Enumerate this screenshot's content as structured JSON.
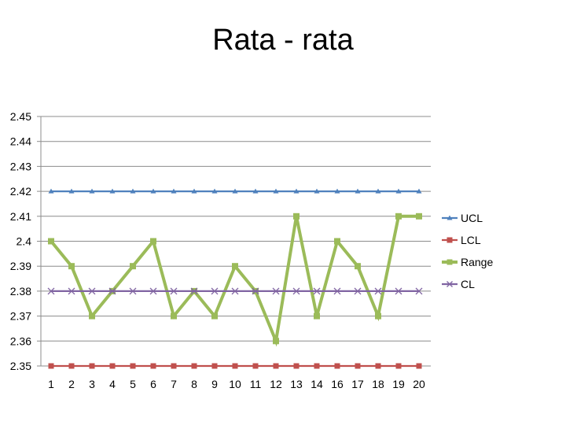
{
  "chart_data": {
    "type": "line",
    "title": "Rata - rata",
    "xlabel": "",
    "ylabel": "",
    "categories": [
      "1",
      "2",
      "3",
      "4",
      "5",
      "6",
      "7",
      "8",
      "9",
      "10",
      "11",
      "12",
      "13",
      "14",
      "16",
      "17",
      "18",
      "19",
      "20"
    ],
    "ylim": [
      2.35,
      2.45
    ],
    "yticks": [
      "2.35",
      "2.36",
      "2.37",
      "2.38",
      "2.39",
      "2.4",
      "2.41",
      "2.42",
      "2.43",
      "2.44",
      "2.45"
    ],
    "grid": true,
    "legend_position": "right",
    "series": [
      {
        "name": "UCL",
        "color": "#4f81bd",
        "marker": "triangle",
        "values": [
          2.42,
          2.42,
          2.42,
          2.42,
          2.42,
          2.42,
          2.42,
          2.42,
          2.42,
          2.42,
          2.42,
          2.42,
          2.42,
          2.42,
          2.42,
          2.42,
          2.42,
          2.42,
          2.42
        ]
      },
      {
        "name": "LCL",
        "color": "#c0504d",
        "marker": "square",
        "values": [
          2.35,
          2.35,
          2.35,
          2.35,
          2.35,
          2.35,
          2.35,
          2.35,
          2.35,
          2.35,
          2.35,
          2.35,
          2.35,
          2.35,
          2.35,
          2.35,
          2.35,
          2.35,
          2.35
        ]
      },
      {
        "name": "Range",
        "color": "#9bbb59",
        "marker": "square",
        "values": [
          2.4,
          2.39,
          2.37,
          2.38,
          2.39,
          2.4,
          2.37,
          2.38,
          2.37,
          2.39,
          2.38,
          2.36,
          2.41,
          2.37,
          2.4,
          2.39,
          2.37,
          2.41,
          2.41
        ]
      },
      {
        "name": "CL",
        "color": "#8064a2",
        "marker": "x",
        "values": [
          2.38,
          2.38,
          2.38,
          2.38,
          2.38,
          2.38,
          2.38,
          2.38,
          2.38,
          2.38,
          2.38,
          2.38,
          2.38,
          2.38,
          2.38,
          2.38,
          2.38,
          2.38,
          2.38
        ]
      }
    ]
  }
}
